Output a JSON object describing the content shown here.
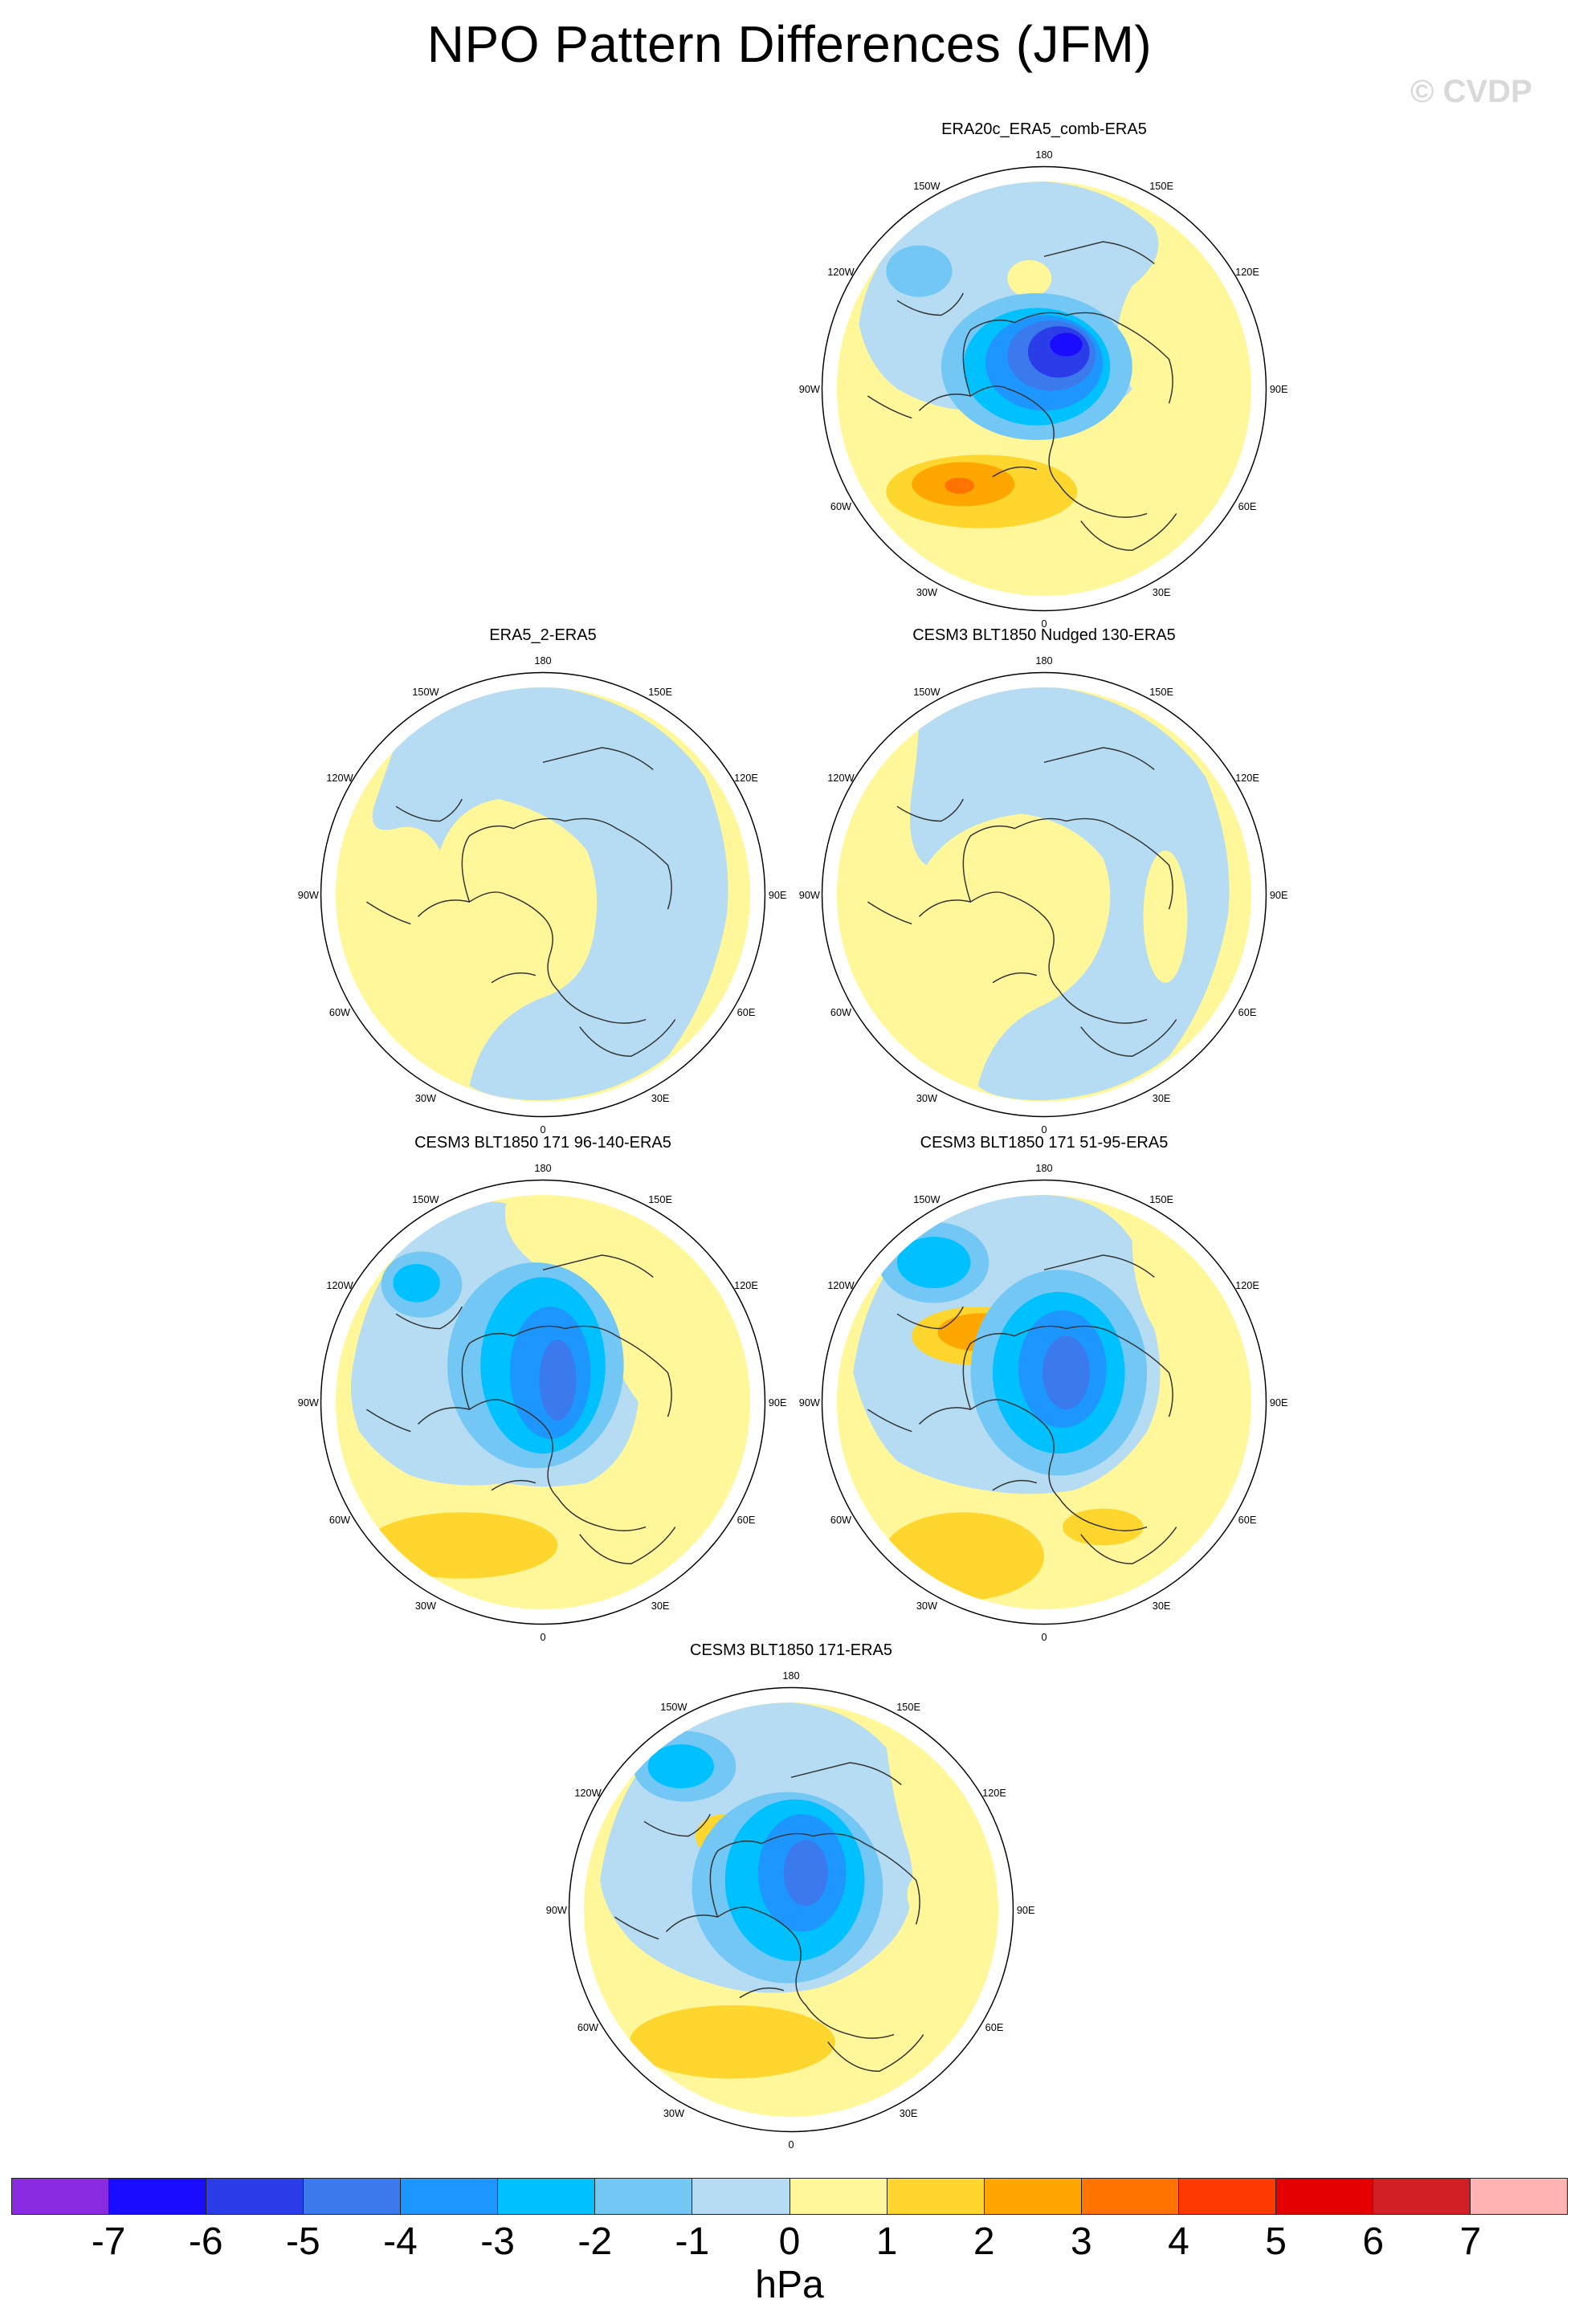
{
  "title": "NPO Pattern Differences (JFM)",
  "watermark": "© CVDP",
  "lon_labels": {
    "top": "180",
    "bottom": "0",
    "upper_left": "150W",
    "upper_right": "150E",
    "mid_upper_left": "120W",
    "mid_upper_right": "120E",
    "left": "90W",
    "right": "90E",
    "mid_lower_left": "60W",
    "mid_lower_right": "60E",
    "lower_left": "30W",
    "lower_right": "30E"
  },
  "panels": [
    {
      "title": "ERA20c_ERA5_comb-ERA5",
      "pattern": "strong"
    },
    {
      "title": "ERA5_2-ERA5",
      "pattern": "weak"
    },
    {
      "title": "CESM3 BLT1850 Nudged 130-ERA5",
      "pattern": "weak2"
    },
    {
      "title": "CESM3 BLT1850 171 96-140-ERA5",
      "pattern": "model"
    },
    {
      "title": "CESM3 BLT1850 171 51-95-ERA5",
      "pattern": "model2"
    },
    {
      "title": "CESM3 BLT1850 171-ERA5",
      "pattern": "model3"
    }
  ],
  "colorbar": {
    "units": "hPa",
    "ticks": [
      "-7",
      "-6",
      "-5",
      "-4",
      "-3",
      "-2",
      "-1",
      "0",
      "1",
      "2",
      "3",
      "4",
      "5",
      "6",
      "7"
    ],
    "colors": [
      "#8a2be2",
      "#1a0dff",
      "#2a3de8",
      "#3a7aec",
      "#1e96ff",
      "#00c1ff",
      "#72c7f5",
      "#b5dcf2",
      "#fff79a",
      "#ffd62e",
      "#ffa700",
      "#ff7300",
      "#ff3a00",
      "#e40000",
      "#d21f26",
      "#ffb3b3"
    ]
  }
}
